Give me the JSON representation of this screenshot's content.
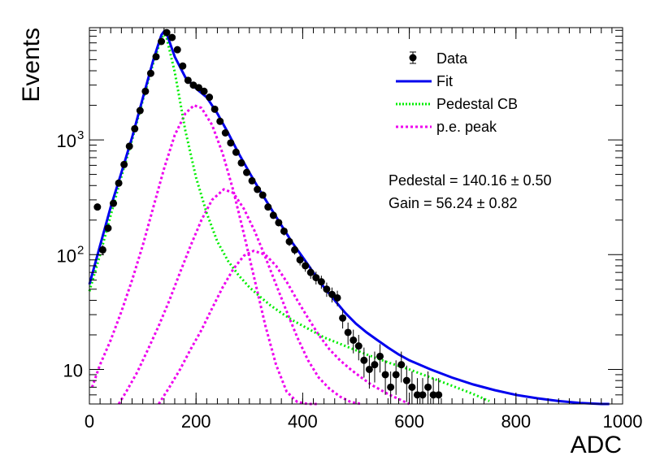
{
  "chart_data": {
    "type": "scatter",
    "x_axis": {
      "label": "ADC",
      "range": [
        0,
        1000
      ],
      "major_ticks": [
        0,
        200,
        400,
        600,
        800,
        1000
      ],
      "tick_labels": [
        "0",
        "200",
        "400",
        "600",
        "800",
        "1000"
      ]
    },
    "y_axis": {
      "label": "Events",
      "scale": "log",
      "range": [
        5,
        9500
      ],
      "tick_values": [
        10,
        100,
        1000
      ],
      "tick_labels": [
        "10",
        "10",
        "10"
      ],
      "tick_exponents": [
        "",
        "2",
        "3"
      ]
    },
    "grid": false,
    "legend": {
      "placement": "top-right",
      "entries": [
        {
          "label": "Data",
          "color": "#000000",
          "style": "marker"
        },
        {
          "label": "Fit",
          "color": "#0000ee",
          "style": "solid"
        },
        {
          "label": "Pedestal CB",
          "color": "#00ee00",
          "style": "dotted"
        },
        {
          "label": "p.e. peak",
          "color": "#ee00ee",
          "style": "dotted"
        }
      ]
    },
    "annotations": [
      "Pedestal = 140.16 ± 0.50",
      "Gain = 56.24 ± 0.82"
    ],
    "data_points": {
      "name": "Data",
      "x": [
        15,
        25,
        35,
        45,
        55,
        65,
        75,
        85,
        95,
        105,
        115,
        125,
        135,
        145,
        155,
        165,
        175,
        185,
        195,
        205,
        215,
        225,
        235,
        245,
        255,
        265,
        275,
        285,
        295,
        305,
        315,
        325,
        335,
        345,
        355,
        365,
        375,
        385,
        395,
        405,
        415,
        425,
        435,
        445,
        455,
        465,
        475,
        485,
        495,
        505,
        515,
        525,
        535,
        545,
        555,
        565,
        575,
        585,
        595,
        605,
        615,
        625,
        635,
        645,
        655
      ],
      "y": [
        260,
        110,
        170,
        280,
        420,
        610,
        880,
        1250,
        1800,
        2650,
        3800,
        5300,
        7200,
        8600,
        7800,
        6100,
        4400,
        3300,
        3000,
        2850,
        2650,
        2350,
        1850,
        1450,
        1150,
        940,
        780,
        630,
        520,
        440,
        370,
        330,
        260,
        220,
        190,
        160,
        130,
        110,
        90,
        80,
        70,
        63,
        58,
        50,
        45,
        42,
        28,
        21,
        18,
        16,
        12,
        10,
        11,
        13,
        9,
        7,
        9,
        11,
        8,
        7,
        6,
        6,
        7,
        6,
        6
      ],
      "yerr": [
        16,
        11,
        13,
        17,
        20,
        25,
        30,
        35,
        42,
        51,
        62,
        73,
        85,
        93,
        88,
        78,
        66,
        57,
        55,
        53,
        51,
        48,
        43,
        38,
        34,
        31,
        28,
        25,
        23,
        21,
        19,
        18,
        16,
        15,
        14,
        13,
        11,
        10,
        9.5,
        9,
        8.4,
        8,
        7.6,
        7.1,
        6.7,
        6.5,
        5.3,
        4.6,
        4.2,
        4,
        3.5,
        3.2,
        3.3,
        3.6,
        3,
        2.6,
        3,
        3.3,
        2.8,
        2.6,
        2.4,
        2.4,
        2.6,
        2.4,
        2.4
      ]
    },
    "fit_curve": {
      "name": "Fit",
      "x": [
        0,
        20,
        40,
        60,
        80,
        100,
        120,
        135,
        140,
        145,
        160,
        180,
        200,
        220,
        240,
        260,
        280,
        300,
        320,
        340,
        360,
        380,
        400,
        420,
        440,
        460,
        480,
        500,
        520,
        540,
        560,
        580,
        600,
        640,
        680,
        720,
        760,
        800,
        840,
        880,
        920,
        960,
        975
      ],
      "y": [
        55,
        120,
        260,
        520,
        1050,
        2300,
        5000,
        8200,
        8800,
        8400,
        5300,
        3500,
        2800,
        2350,
        1700,
        1150,
        760,
        520,
        360,
        255,
        180,
        128,
        95,
        70,
        52,
        40,
        31,
        25,
        21,
        18,
        15.5,
        13.5,
        12,
        10,
        8.5,
        7.4,
        6.6,
        6.0,
        5.6,
        5.3,
        5.1,
        5.0,
        5.0
      ]
    },
    "pedestal_curve": {
      "name": "Pedestal CB",
      "x": [
        0,
        20,
        40,
        60,
        80,
        100,
        120,
        135,
        140,
        145,
        160,
        180,
        200,
        220,
        240,
        260,
        280,
        300,
        320,
        340,
        360,
        380,
        400,
        440,
        480,
        520,
        560,
        600,
        640,
        680,
        720,
        750
      ],
      "y": [
        48,
        100,
        220,
        480,
        1000,
        2200,
        4700,
        7700,
        8300,
        7700,
        3900,
        1200,
        470,
        230,
        130,
        88,
        66,
        52,
        43,
        36,
        31,
        27,
        24,
        19,
        16,
        13.5,
        11.5,
        10,
        8.5,
        7.2,
        6.1,
        5.3
      ]
    },
    "pe_peaks": {
      "name": "p.e. peak",
      "peaks": [
        {
          "x": [
            5,
            20,
            40,
            60,
            80,
            100,
            120,
            140,
            160,
            180,
            196,
            210,
            230,
            250,
            270,
            290,
            310,
            330,
            350,
            370,
            390,
            410,
            430
          ],
          "y": [
            7,
            11,
            18,
            32,
            60,
            120,
            260,
            560,
            1100,
            1700,
            2000,
            1900,
            1350,
            760,
            360,
            150,
            60,
            24,
            11,
            6.4,
            5.2,
            5.0,
            5.0
          ]
        },
        {
          "x": [
            55,
            70,
            90,
            110,
            130,
            150,
            170,
            190,
            210,
            230,
            252,
            270,
            290,
            310,
            330,
            350,
            370,
            390,
            410,
            430,
            450,
            470,
            490,
            510
          ],
          "y": [
            5,
            6.5,
            9.5,
            15,
            24,
            40,
            70,
            120,
            200,
            300,
            370,
            345,
            250,
            160,
            95,
            55,
            32,
            19,
            12,
            8.5,
            6.8,
            5.8,
            5.2,
            5.0
          ]
        },
        {
          "x": [
            130,
            150,
            170,
            190,
            210,
            230,
            250,
            270,
            290,
            308,
            330,
            350,
            370,
            390,
            410,
            430,
            450,
            470,
            490,
            510,
            530,
            560,
            600
          ],
          "y": [
            5,
            7,
            10,
            15,
            22,
            34,
            52,
            75,
            98,
            108,
            100,
            80,
            58,
            40,
            28,
            20,
            15,
            12,
            10,
            8.5,
            7.3,
            6.1,
            5.0
          ]
        }
      ]
    }
  }
}
